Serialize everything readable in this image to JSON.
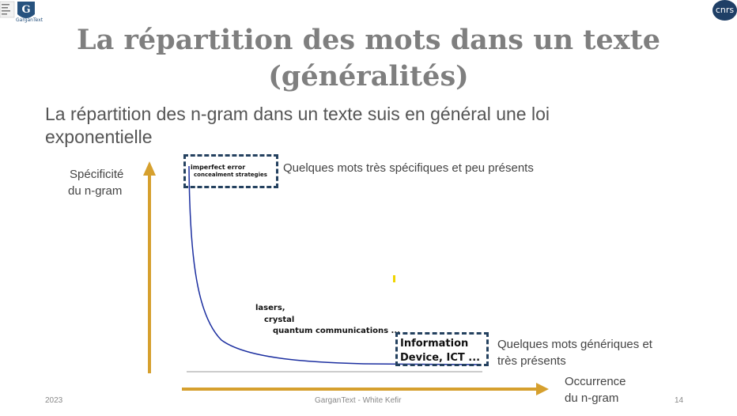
{
  "logos": {
    "left_caption": "GarganText",
    "cnrs": "cnrs"
  },
  "title_line1": "La répartition des mots dans un texte",
  "title_line2": "(généralités)",
  "subtitle": "La répartition des n-gram dans un texte suis en général une loi exponentielle",
  "diagram": {
    "y_axis_label_line1": "Spécificité",
    "y_axis_label_line2": "du n-gram",
    "x_axis_label_line1": "Occurrence",
    "x_axis_label_line2": "du n-gram",
    "top_box_line1": "imperfect error",
    "top_box_line2": "concealment strategies",
    "top_note": "Quelques mots très spécifiques et peu présents",
    "mid_term1": "lasers,",
    "mid_term2": "crystal",
    "mid_term3": "quantum communications ...",
    "bottom_box_line1": "Information",
    "bottom_box_line2": "Device, ICT ...",
    "bottom_note_line1": "Quelques mots génériques et",
    "bottom_note_line2": "très présents",
    "colors": {
      "axis": "#d6a02e",
      "curve": "#1c2fa0",
      "box": "#24415f"
    }
  },
  "footer": {
    "year": "2023",
    "center": "GarganText - White Kefir",
    "page": "14"
  }
}
